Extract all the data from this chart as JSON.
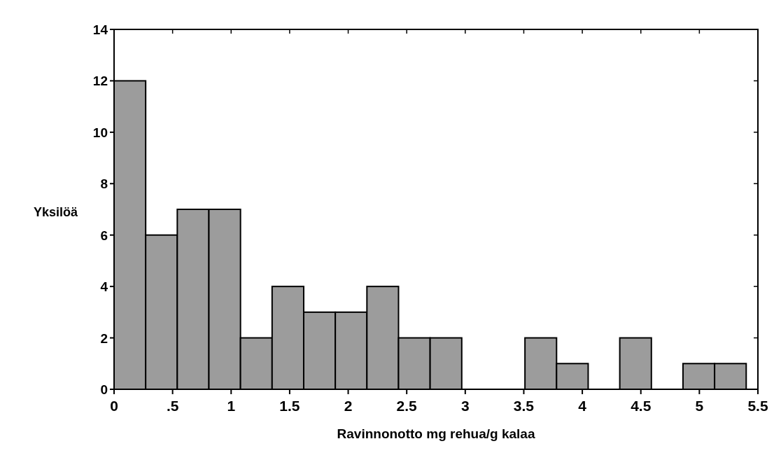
{
  "chart_data": {
    "type": "histogram",
    "xlabel": "Ravinnonotto mg rehua/g kalaa",
    "ylabel": "Yksilöä",
    "bins": [
      0,
      0.27,
      0.54,
      0.81,
      1.08,
      1.35,
      1.62,
      1.89,
      2.16,
      2.43,
      2.7,
      2.97,
      3.24,
      3.51,
      3.78,
      4.05,
      4.32,
      4.59,
      4.86,
      5.13,
      5.4
    ],
    "values": [
      12,
      6,
      7,
      7,
      2,
      4,
      3,
      3,
      4,
      2,
      2,
      0,
      0,
      2,
      1,
      0,
      2,
      0,
      1,
      1
    ],
    "color": "#9c9c9c",
    "xlim": [
      0,
      5.5
    ],
    "xticks": [
      0,
      {
        "value": 0.5,
        "label": ".5"
      },
      1,
      1.5,
      2,
      2.5,
      3,
      3.5,
      4,
      4.5,
      5,
      5.5
    ],
    "ylim": [
      0,
      14
    ],
    "yticks": [
      0,
      2,
      4,
      6,
      8,
      10,
      12,
      14
    ]
  }
}
